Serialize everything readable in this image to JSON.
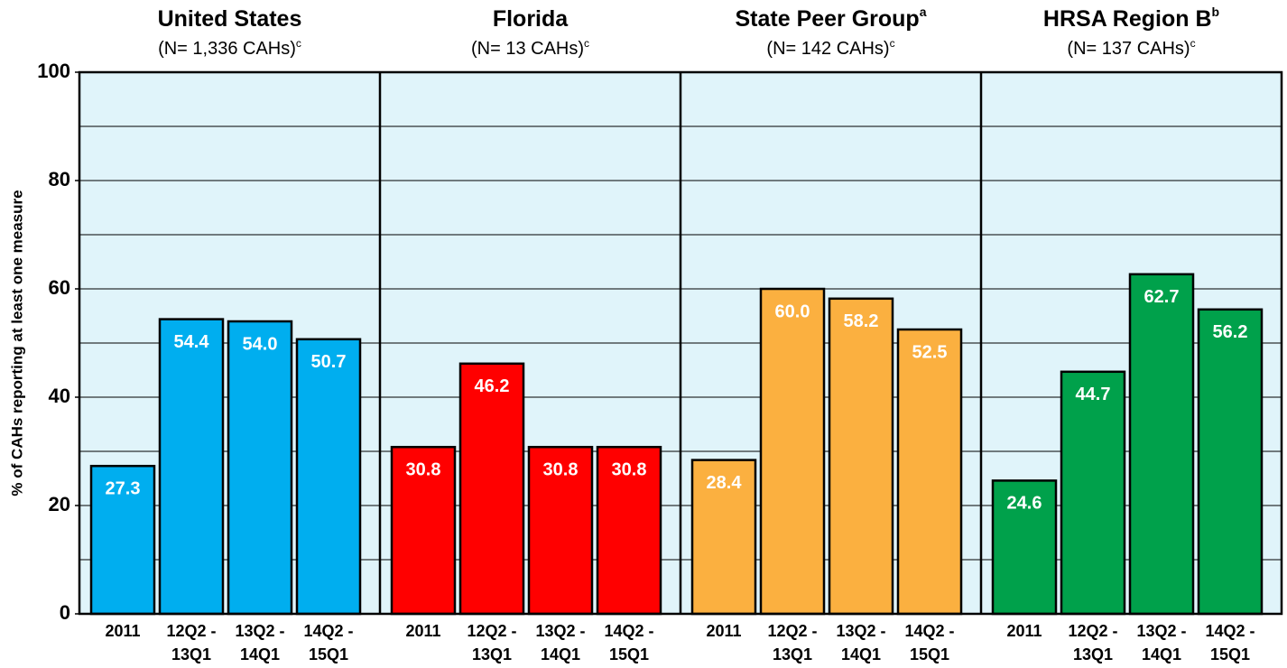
{
  "chart_data": {
    "type": "bar",
    "y_label": "% of CAHs reporting at least one measure",
    "ylim": [
      0,
      100
    ],
    "yticks": [
      0,
      20,
      40,
      60,
      80,
      100
    ],
    "ygrid": [
      10,
      20,
      30,
      40,
      50,
      60,
      70,
      80,
      90
    ],
    "background": "#e0f4fa",
    "categories": [
      [
        "2011"
      ],
      [
        "12Q2 -",
        "13Q1"
      ],
      [
        "13Q2 -",
        "14Q1"
      ],
      [
        "14Q2 -",
        "15Q1"
      ]
    ],
    "panels": [
      {
        "title": "United States",
        "subtitle": "(N= 1,336 CAHs)",
        "subtitle_superscript": "c",
        "color": "#00aeef",
        "values": [
          27.3,
          54.4,
          54.0,
          50.7
        ],
        "value_labels": [
          "27.3",
          "54.4",
          "54.0",
          "50.7"
        ]
      },
      {
        "title": "Florida",
        "subtitle": "(N= 13 CAHs)",
        "subtitle_superscript": "c",
        "color": "#ff0000",
        "values": [
          30.8,
          46.2,
          30.8,
          30.8
        ],
        "value_labels": [
          "30.8",
          "46.2",
          "30.8",
          "30.8"
        ]
      },
      {
        "title": "State Peer Group",
        "title_superscript": "a",
        "subtitle": "(N= 142 CAHs)",
        "subtitle_superscript": "c",
        "color": "#fbb040",
        "values": [
          28.4,
          60.0,
          58.2,
          52.5
        ],
        "value_labels": [
          "28.4",
          "60.0",
          "58.2",
          "52.5"
        ]
      },
      {
        "title": "HRSA Region B",
        "title_superscript": "b",
        "subtitle": "(N= 137 CAHs)",
        "subtitle_superscript": "c",
        "color": "#00a14b",
        "values": [
          24.6,
          44.7,
          62.7,
          56.2
        ],
        "value_labels": [
          "24.6",
          "44.7",
          "62.7",
          "56.2"
        ]
      }
    ]
  }
}
